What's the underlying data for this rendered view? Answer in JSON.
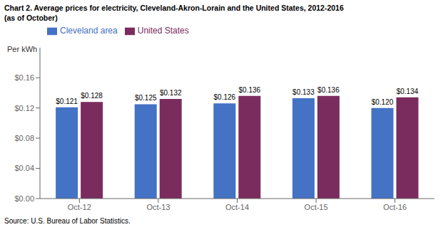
{
  "chart_data": {
    "type": "bar",
    "title": "Chart 2. Average prices for electricity, Cleveland-Akron-Lorain and the United States, 2012-2016",
    "subtitle": "(as of October)",
    "ylabel": "Per kWh",
    "annotations": [
      "Source: U.S. Bureau of Labor Statistics."
    ],
    "categories": [
      "Oct-12",
      "Oct-13",
      "Oct-14",
      "Oct-15",
      "Oct-16"
    ],
    "series": [
      {
        "name": "Cleveland area",
        "color": "#4472C4",
        "values": [
          0.121,
          0.125,
          0.126,
          0.133,
          0.12
        ],
        "value_labels": [
          "$0.121",
          "$0.125",
          "$0.126",
          "$0.133",
          "$0.120"
        ]
      },
      {
        "name": "United States",
        "color": "#7B2C5E",
        "values": [
          0.128,
          0.132,
          0.136,
          0.136,
          0.134
        ],
        "value_labels": [
          "$0.128",
          "$0.132",
          "$0.136",
          "$0.136",
          "$0.134"
        ]
      }
    ],
    "ylim": [
      0,
      0.2
    ],
    "yticks": [
      {
        "value": 0.0,
        "label": "$0.00"
      },
      {
        "value": 0.04,
        "label": "$0.04"
      },
      {
        "value": 0.08,
        "label": "$0.08"
      },
      {
        "value": 0.12,
        "label": "$0.12"
      },
      {
        "value": 0.16,
        "label": "$0.16"
      }
    ],
    "grid": false,
    "legend": "upper left",
    "data_labels": true
  }
}
